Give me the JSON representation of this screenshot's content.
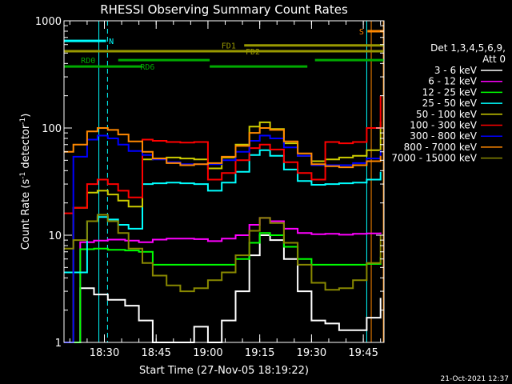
{
  "chart_data": {
    "type": "line",
    "title": "RHESSI Observing Summary Count Rates",
    "xlabel": "Start Time (27-Nov-05 18:19:22)",
    "ylabel_parts": [
      "Count Rate (s",
      "-1",
      " detector",
      "-1",
      ")"
    ],
    "y_scale": "log",
    "ylim": [
      1,
      1000
    ],
    "xlim_minutes": [
      18.3,
      111.0
    ],
    "x_ticks": [
      {
        "label": "18:30",
        "minute": 30
      },
      {
        "label": "18:45",
        "minute": 45
      },
      {
        "label": "19:00",
        "minute": 60
      },
      {
        "label": "19:15",
        "minute": 75
      },
      {
        "label": "19:30",
        "minute": 90
      },
      {
        "label": "19:45",
        "minute": 105
      }
    ],
    "y_ticks": [
      {
        "label": "1",
        "value": 1
      },
      {
        "label": "10",
        "value": 10
      },
      {
        "label": "100",
        "value": 100
      },
      {
        "label": "1000",
        "value": 1000
      }
    ],
    "legend": {
      "header": [
        "Det 1,3,4,5,6,9,",
        "Att 0"
      ],
      "placement": "right"
    },
    "series": [
      {
        "name": "3 - 6 keV",
        "color": "#ffffff",
        "x": [
          18.3,
          23,
          27,
          31,
          36,
          40,
          44,
          48,
          52,
          56,
          60,
          64,
          68,
          72,
          75,
          78,
          82,
          86,
          90,
          94,
          98,
          102,
          106,
          110
        ],
        "values": [
          1,
          3.2,
          2.8,
          2.5,
          2.2,
          1.6,
          1,
          1,
          1,
          1.4,
          1,
          1.6,
          3,
          6.5,
          10,
          9,
          6,
          3,
          1.6,
          1.5,
          1.3,
          1.3,
          1.7,
          2.6
        ]
      },
      {
        "name": "6 - 12 keV",
        "color": "#ff00ff",
        "x": [
          18.3,
          23,
          27,
          31,
          36,
          40,
          44,
          48,
          52,
          56,
          60,
          64,
          68,
          72,
          75,
          78,
          82,
          86,
          90,
          94,
          98,
          102,
          106,
          110
        ],
        "values": [
          1,
          8.6,
          8.9,
          9.1,
          8.9,
          8.6,
          9.1,
          9.3,
          9.3,
          9.2,
          8.8,
          9.3,
          10,
          12.5,
          14.5,
          13.5,
          11.5,
          10.5,
          10.2,
          10.3,
          10.1,
          10.3,
          10.4,
          10.6
        ]
      },
      {
        "name": "12 - 25 keV",
        "color": "#00ff00",
        "x": [
          18.3,
          23,
          27,
          31,
          36,
          40,
          44,
          48,
          52,
          56,
          60,
          64,
          68,
          72,
          75,
          78,
          82,
          86,
          90,
          94,
          98,
          102,
          106,
          110
        ],
        "values": [
          1,
          7.4,
          7.5,
          7.3,
          7.2,
          7.0,
          5.3,
          5.3,
          5.3,
          5.3,
          5.3,
          5.3,
          6.0,
          8.5,
          10.5,
          10,
          7.8,
          6.0,
          5.3,
          5.3,
          5.3,
          5.3,
          5.4,
          6.3
        ]
      },
      {
        "name": "25 - 50 keV",
        "color": "#00ffff",
        "x": [
          18.3,
          21,
          25,
          28,
          31,
          34,
          37,
          41,
          44,
          48,
          52,
          56,
          60,
          64,
          68,
          72,
          75,
          78,
          82,
          86,
          90,
          94,
          98,
          102,
          106,
          110
        ],
        "values": [
          4.5,
          4.5,
          13.5,
          14.8,
          14.0,
          12.5,
          11.5,
          30,
          30.5,
          31,
          30.5,
          30,
          26,
          31,
          39,
          56,
          62,
          55,
          41,
          32,
          29.5,
          30,
          30.5,
          31,
          33,
          39
        ]
      },
      {
        "name": "50 - 100 keV",
        "color": "#cccc00",
        "x": [
          18.3,
          21,
          25,
          28,
          31,
          34,
          37,
          41,
          44,
          48,
          52,
          56,
          60,
          64,
          68,
          72,
          75,
          78,
          82,
          86,
          90,
          94,
          98,
          102,
          106,
          110
        ],
        "values": [
          1,
          18,
          25,
          26,
          24,
          21,
          18.5,
          51,
          52,
          53,
          52,
          51,
          42,
          53,
          70,
          103,
          113,
          98,
          72,
          55,
          49,
          51,
          53,
          55,
          62,
          115
        ]
      },
      {
        "name": "100 - 300 keV",
        "color": "#ff0000",
        "x": [
          18.3,
          21,
          25,
          28,
          31,
          34,
          37,
          41,
          44,
          48,
          52,
          56,
          60,
          64,
          68,
          72,
          75,
          78,
          82,
          86,
          90,
          94,
          98,
          102,
          106,
          110
        ],
        "values": [
          16,
          18,
          30,
          33,
          30,
          26,
          22.5,
          78,
          76,
          74,
          73,
          74,
          33,
          38,
          50,
          65,
          70,
          63,
          48,
          38,
          33,
          74,
          72,
          74,
          100,
          200
        ]
      },
      {
        "name": "300 - 800 keV",
        "color": "#0000ff",
        "x": [
          18.3,
          21,
          25,
          28,
          31,
          34,
          37,
          41,
          44,
          48,
          52,
          56,
          60,
          64,
          68,
          72,
          75,
          78,
          82,
          86,
          90,
          94,
          98,
          102,
          106,
          110
        ],
        "values": [
          1,
          54,
          78,
          85,
          80,
          70,
          61,
          56,
          51,
          48,
          46,
          46,
          46,
          50,
          60,
          76,
          85,
          80,
          66,
          55,
          45,
          45,
          45,
          47,
          52,
          62
        ]
      },
      {
        "name": "800 - 7000 keV",
        "color": "#ff8800",
        "x": [
          18.3,
          21,
          25,
          28,
          31,
          34,
          37,
          41,
          44,
          48,
          52,
          56,
          60,
          64,
          68,
          72,
          75,
          78,
          82,
          86,
          90,
          94,
          98,
          102,
          106,
          110
        ],
        "values": [
          60,
          70,
          93,
          100,
          96,
          87,
          75,
          60,
          52,
          47,
          45,
          46,
          47,
          54,
          68,
          90,
          100,
          96,
          75,
          58,
          46,
          44,
          43,
          45,
          49,
          55
        ]
      },
      {
        "name": "7000 - 15000 keV",
        "color": "#888800",
        "x": [
          18.3,
          21,
          25,
          28,
          31,
          34,
          37,
          41,
          44,
          48,
          52,
          56,
          60,
          64,
          68,
          72,
          75,
          78,
          82,
          86,
          90,
          94,
          98,
          102,
          106,
          110
        ],
        "values": [
          7.5,
          9,
          13.5,
          15.5,
          13.5,
          10.5,
          7.5,
          5.5,
          4.2,
          3.4,
          3.0,
          3.2,
          3.8,
          4.5,
          6.5,
          11,
          14.5,
          13,
          8.5,
          5.3,
          3.6,
          3.1,
          3.2,
          3.8,
          5.5,
          10
        ]
      }
    ],
    "flags": [
      {
        "label": "N",
        "color": "#00ffff",
        "value": 650,
        "x_start": 18.3,
        "x_end": 30.5,
        "label_minute": 32
      },
      {
        "label": "S",
        "color": "#ff8800",
        "value": 800,
        "x_start": 106.2,
        "x_end": 110.8,
        "label_minute": 104.5
      },
      {
        "label": "FD1",
        "color": "#999900",
        "value": 590,
        "x_start": 70.5,
        "x_end": 111.0,
        "label_minute": 66
      },
      {
        "label": "FD2",
        "color": "#999900",
        "value": 520,
        "x_start": 18.3,
        "x_end": 111.0,
        "label_minute": 73
      },
      {
        "label": "RD0",
        "color": "#00aa00",
        "value": 430,
        "x_start": 34,
        "x_end": 60.5,
        "label_minute": 25.3
      },
      {
        "label": "RD0 (cont)",
        "color": "#00aa00",
        "value": 430,
        "x_start": 91,
        "x_end": 111.0,
        "label_minute": null
      },
      {
        "label": "RD6",
        "color": "#00aa00",
        "value": 375,
        "x_start": 18.3,
        "x_end": 41,
        "label_minute": 42.5
      },
      {
        "label": "RD6 (cont)",
        "color": "#00aa00",
        "value": 375,
        "x_start": 60.5,
        "x_end": 88.8,
        "label_minute": null
      }
    ],
    "vertical_lines": [
      {
        "minute": 28.4,
        "color": "#00ffff",
        "style": "solid"
      },
      {
        "minute": 30.9,
        "color": "#00ffff",
        "style": "dashed"
      },
      {
        "minute": 106.0,
        "color": "#00ffff",
        "style": "solid"
      },
      {
        "minute": 107.3,
        "color": "#ff8800",
        "style": "solid"
      },
      {
        "minute": 110.8,
        "color": "#ff8800",
        "style": "solid"
      },
      {
        "minute": 111.0,
        "color": "#00ffff",
        "style": "dashed"
      }
    ],
    "grid": false
  },
  "footer": {
    "timestamp": "21-Oct-2021 12:37"
  }
}
